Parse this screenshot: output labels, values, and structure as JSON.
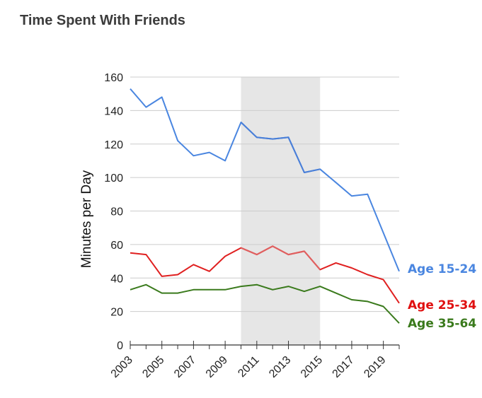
{
  "chart_data": {
    "type": "line",
    "title": "Time Spent With Friends",
    "xlabel": "",
    "ylabel": "Minutes per Day",
    "x": [
      2003,
      2004,
      2005,
      2006,
      2007,
      2008,
      2009,
      2010,
      2011,
      2012,
      2013,
      2014,
      2015,
      2016,
      2017,
      2018,
      2019,
      2020
    ],
    "xtick_labels": [
      "2003",
      "2005",
      "2007",
      "2009",
      "2011",
      "2013",
      "2015",
      "2017",
      "2019"
    ],
    "xlim": [
      2003,
      2020
    ],
    "ylim": [
      0,
      160
    ],
    "yticks": [
      0,
      20,
      40,
      60,
      80,
      100,
      120,
      140,
      160
    ],
    "grid": true,
    "legend": "direct labels at line ends",
    "shaded_region": {
      "x_start": 2010,
      "x_end": 2015,
      "color": "#e6e6e6"
    },
    "highlight_colors": [
      "#e06060",
      "#4a7fd8"
    ],
    "series": [
      {
        "name": "Age 15-24",
        "color": "#4a86e0",
        "label_color": "#4a86e0",
        "values": [
          153,
          142,
          148,
          122,
          113,
          115,
          110,
          133,
          124,
          123,
          124,
          103,
          105,
          97,
          89,
          90,
          67,
          44
        ]
      },
      {
        "name": "Age 25-34",
        "color": "#e02020",
        "label_color": "#e01010",
        "values": [
          55,
          54,
          41,
          42,
          48,
          44,
          53,
          58,
          54,
          59,
          54,
          56,
          45,
          49,
          46,
          42,
          39,
          25
        ]
      },
      {
        "name": "Age 35-64",
        "color": "#3a7a1c",
        "label_color": "#3a7a1c",
        "values": [
          33,
          36,
          31,
          31,
          33,
          33,
          33,
          35,
          36,
          33,
          35,
          32,
          35,
          31,
          27,
          26,
          23,
          13
        ]
      }
    ]
  }
}
